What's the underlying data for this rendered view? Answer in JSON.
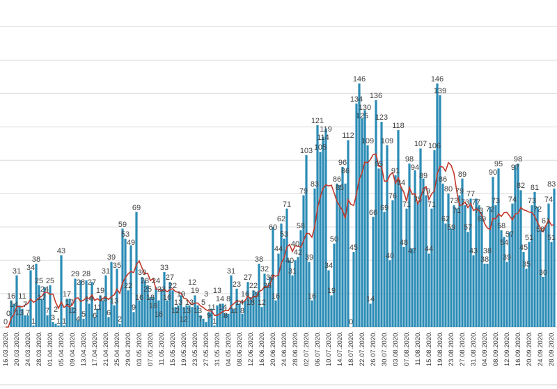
{
  "chart_data": {
    "type": "bar",
    "title": "",
    "xlabel": "",
    "ylabel": "",
    "start_date": "16.03.2020.",
    "x_tick_labels": [
      "16.03.2020.",
      "20.03.2020.",
      "24.03.2020.",
      "28.03.2020.",
      "01.04.2020.",
      "05.04.2020.",
      "09.04.2020.",
      "13.04.2020.",
      "17.04.2020.",
      "21.04.2020.",
      "25.04.2020.",
      "29.04.2020.",
      "03.05.2020.",
      "07.05.2020.",
      "11.05.2020.",
      "15.05.2020.",
      "19.05.2020.",
      "23.05.2020.",
      "27.05.2020.",
      "31.05.2020.",
      "04.05.2020.",
      "08.06.2020.",
      "12.06.2020.",
      "16.06.2020.",
      "20.06.2020.",
      "24.06.2020.",
      "28.06.2020.",
      "02.07.2020.",
      "06.07.2020.",
      "10.07.2020.",
      "14.07.2020.",
      "18.07.2020.",
      "22.07.2020.",
      "26.07.2020.",
      "30.07.2020.",
      "03.08.2020.",
      "07.08.2020.",
      "11.08.2020.",
      "15.08.2020.",
      "19.08.2020.",
      "23.08.2020.",
      "27.08.2020.",
      "31.08.2020.",
      "04.09.2020.",
      "08.09.2020.",
      "12.09.2020.",
      "16.09.2020.",
      "20.09.2020.",
      "24.09.2020.",
      "28.09.2020."
    ],
    "values": [
      0,
      0,
      16,
      14,
      31,
      13,
      11,
      7,
      7,
      34,
      1,
      38,
      25,
      17,
      24,
      7,
      25,
      3,
      2,
      1,
      43,
      1,
      17,
      17,
      12,
      29,
      4,
      28,
      5,
      28,
      14,
      27,
      6,
      11,
      19,
      16,
      31,
      6,
      39,
      13,
      35,
      2,
      59,
      53,
      22,
      49,
      9,
      69,
      16,
      30,
      28,
      25,
      18,
      18,
      24,
      16,
      23,
      33,
      16,
      27,
      22,
      12,
      13,
      19,
      12,
      13,
      13,
      12,
      19,
      13,
      7,
      5,
      3,
      9,
      11,
      1,
      13,
      14,
      14,
      8,
      8,
      31,
      11,
      23,
      14,
      8,
      16,
      27,
      18,
      22,
      21,
      38,
      12,
      32,
      25,
      30,
      60,
      16,
      44,
      62,
      53,
      71,
      40,
      31,
      40,
      42,
      58,
      79,
      103,
      39,
      16,
      83,
      121,
      105,
      114,
      119,
      34,
      19,
      50,
      86,
      85,
      96,
      86,
      112,
      0,
      45,
      134,
      146,
      125,
      130,
      109,
      14,
      66,
      136,
      95,
      123,
      69,
      109,
      40,
      76,
      91,
      118,
      84,
      48,
      71,
      98,
      47,
      94,
      75,
      107,
      89,
      79,
      44,
      71,
      106,
      146,
      139,
      86,
      62,
      80,
      59,
      73,
      71,
      79,
      89,
      73,
      57,
      77,
      43,
      77,
      73,
      69,
      38,
      38,
      72,
      90,
      73,
      95,
      58,
      54,
      39,
      57,
      74,
      97,
      98,
      82,
      45,
      35,
      51,
      73,
      81,
      72,
      58,
      30,
      61,
      74,
      51,
      83
    ],
    "trend_line": "7-day moving average",
    "ylim": [
      0,
      196
    ],
    "y_gridlines_every": 20,
    "grid": true,
    "legend": "none",
    "colors": {
      "bar": "#2b8cb6",
      "trend": "#c0392b",
      "grid": "#d9d9d9"
    }
  }
}
